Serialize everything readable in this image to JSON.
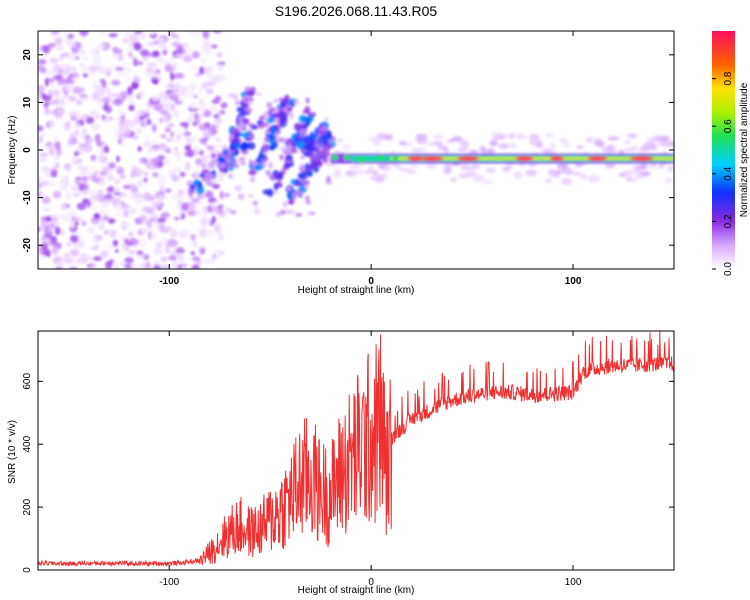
{
  "title": "S196.2026.068.11.43.R05",
  "chart_data": [
    {
      "type": "heatmap",
      "title": "S196.2026.068.11.43.R05",
      "xlabel": "Height of straight line (km)",
      "ylabel": "Frequency (Hz)",
      "xlim": [
        -165,
        150
      ],
      "ylim": [
        -25,
        25
      ],
      "xticks": [
        -100,
        0,
        100
      ],
      "xtick_labels": [
        "-100",
        "0",
        "100"
      ],
      "yticks": [
        -20,
        -10,
        0,
        10,
        20
      ],
      "ytick_labels": [
        "-20",
        "-10",
        "0",
        "10",
        "20"
      ],
      "colorbar": {
        "label": "Normalized spectral amplitude",
        "range": [
          0.0,
          1.0
        ],
        "ticks": [
          0.0,
          0.2,
          0.4,
          0.6,
          0.8
        ],
        "tick_labels": [
          "0.0",
          "0.2",
          "0.4",
          "0.6",
          "0.8"
        ]
      },
      "description_series": [
        {
          "name": "noise_region",
          "x_range": [
            -165,
            -80
          ],
          "freq_range": [
            -25,
            25
          ],
          "amplitude_range": [
            0.02,
            0.2
          ]
        },
        {
          "name": "transition_streaks",
          "x_range": [
            -90,
            -20
          ],
          "freq_range": [
            -12,
            12
          ],
          "amplitude_range": [
            0.1,
            0.4
          ]
        },
        {
          "name": "carrier_band",
          "x_range": [
            -20,
            150
          ],
          "freq_hz": -1.8,
          "amplitude_range": [
            0.3,
            1.0
          ]
        }
      ]
    },
    {
      "type": "line",
      "xlabel": "Height of straight line (km)",
      "ylabel": "SNR (10 * v/v)",
      "xlim": [
        -165,
        150
      ],
      "ylim": [
        0,
        760
      ],
      "xticks": [
        -100,
        0,
        100
      ],
      "xtick_labels": [
        "-100",
        "0",
        "100"
      ],
      "yticks": [
        0,
        200,
        400,
        600
      ],
      "ytick_labels": [
        "0",
        "200",
        "400",
        "600"
      ],
      "series": [
        {
          "name": "SNR",
          "color": "#f03030",
          "x": [
            -165,
            -150,
            -130,
            -110,
            -95,
            -85,
            -80,
            -75,
            -70,
            -65,
            -60,
            -55,
            -50,
            -45,
            -40,
            -35,
            -30,
            -25,
            -20,
            -15,
            -10,
            -5,
            0,
            3,
            5,
            8,
            10,
            15,
            20,
            30,
            40,
            50,
            60,
            70,
            80,
            90,
            100,
            103,
            105,
            110,
            120,
            130,
            140,
            150
          ],
          "values": [
            22,
            20,
            22,
            20,
            22,
            30,
            55,
            90,
            120,
            140,
            120,
            130,
            160,
            190,
            230,
            280,
            300,
            250,
            240,
            310,
            350,
            390,
            420,
            440,
            470,
            300,
            420,
            450,
            480,
            510,
            540,
            555,
            565,
            565,
            555,
            560,
            565,
            600,
            630,
            640,
            650,
            650,
            655,
            655
          ]
        }
      ]
    }
  ],
  "colors": {
    "line": "#f03030",
    "carrier_hot": "#e8203a",
    "noise": "#7a2ef0"
  }
}
